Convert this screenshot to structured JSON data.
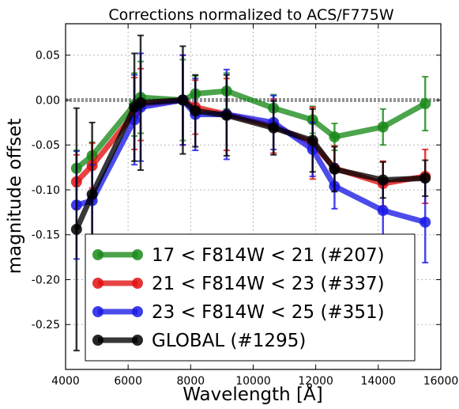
{
  "chart_data": {
    "type": "line",
    "title": "Corrections normalized to ACS/F775W",
    "xlabel": "Wavelength [Å]",
    "ylabel": "magnitude offset",
    "xlim": [
      4000,
      16000
    ],
    "ylim": [
      -0.3,
      0.085
    ],
    "xticks": [
      4000,
      6000,
      8000,
      10000,
      12000,
      14000,
      16000
    ],
    "yticks": [
      -0.25,
      -0.2,
      -0.15,
      -0.1,
      -0.05,
      0.0,
      0.05
    ],
    "xtick_labels": [
      "4000",
      "6000",
      "8000",
      "10000",
      "12000",
      "14000",
      "16000"
    ],
    "ytick_labels": [
      "-0.25",
      "-0.20",
      "-0.15",
      "-0.10",
      "-0.05",
      "0.00",
      "0.05"
    ],
    "grid": true,
    "legend_position": "bottom-left",
    "reference_line": 0.0,
    "series": [
      {
        "name": "17 < F814W < 21 (#207)",
        "color": "#1a8a1a",
        "x": [
          4350,
          4850,
          6200,
          6400,
          7750,
          8150,
          9150,
          10650,
          11900,
          12600,
          14150,
          15500
        ],
        "y": [
          -0.076,
          -0.062,
          -0.005,
          0.003,
          0.0,
          0.007,
          0.01,
          -0.009,
          -0.022,
          -0.041,
          -0.03,
          -0.004
        ],
        "err": [
          0.02,
          0.015,
          0.035,
          0.04,
          0.045,
          0.02,
          0.02,
          0.015,
          0.015,
          0.015,
          0.02,
          0.03
        ]
      },
      {
        "name": "21 < F814W < 23 (#337)",
        "color": "#e01010",
        "x": [
          4350,
          4850,
          6200,
          6400,
          7750,
          8150,
          9150,
          10650,
          11900,
          12600,
          14150,
          15500
        ],
        "y": [
          -0.091,
          -0.073,
          -0.015,
          -0.005,
          0.0,
          -0.008,
          -0.016,
          -0.029,
          -0.048,
          -0.076,
          -0.093,
          -0.085
        ],
        "err": [
          0.03,
          0.025,
          0.04,
          0.04,
          0.05,
          0.03,
          0.04,
          0.03,
          0.04,
          0.025,
          0.025,
          0.03
        ]
      },
      {
        "name": "23 < F814W < 25 (#351)",
        "color": "#1a1ae6",
        "x": [
          4350,
          4850,
          6200,
          6400,
          7750,
          8150,
          9150,
          10650,
          11900,
          12600,
          14150,
          15500
        ],
        "y": [
          -0.117,
          -0.112,
          -0.022,
          -0.008,
          0.0,
          -0.016,
          -0.016,
          -0.025,
          -0.055,
          -0.096,
          -0.123,
          -0.136
        ],
        "err": [
          0.06,
          0.04,
          0.05,
          0.06,
          0.05,
          0.04,
          0.05,
          0.03,
          0.03,
          0.025,
          0.03,
          0.045
        ]
      },
      {
        "name": "GLOBAL (#1295)",
        "color": "#000000",
        "x": [
          4350,
          4850,
          6200,
          6400,
          7750,
          8150,
          9150,
          10650,
          11900,
          12600,
          14150,
          15500
        ],
        "y": [
          -0.144,
          -0.105,
          -0.008,
          -0.003,
          0.0,
          -0.012,
          -0.017,
          -0.031,
          -0.045,
          -0.077,
          -0.089,
          -0.087
        ],
        "err": [
          0.135,
          0.08,
          0.06,
          0.075,
          0.06,
          0.04,
          0.045,
          0.03,
          0.035,
          0.025,
          0.02,
          0.02
        ]
      }
    ]
  }
}
